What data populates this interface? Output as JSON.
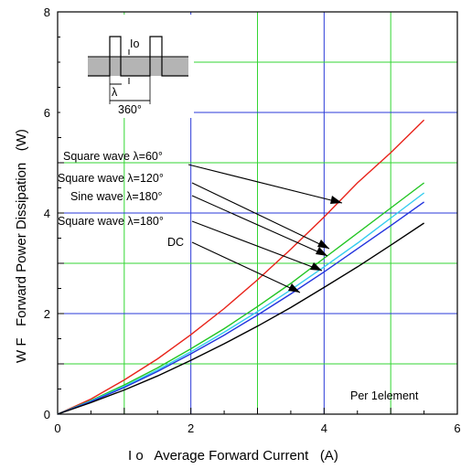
{
  "chart_data": {
    "type": "line",
    "xlabel": "I o   Average Forward Current   (A)",
    "ylabel": "W F   Forward Power Dissipation   (W)",
    "xlim": [
      0,
      6
    ],
    "ylim": [
      0,
      8
    ],
    "x_ticks": [
      "0",
      "2",
      "4",
      "6"
    ],
    "y_ticks": [
      "0",
      "2",
      "4",
      "6",
      "8"
    ],
    "grid": true,
    "series": [
      {
        "name": "Square wave λ=60°",
        "color": "#e8231a",
        "x": [
          0,
          0.5,
          1,
          1.5,
          2,
          2.5,
          3,
          3.5,
          4,
          4.5,
          5,
          5.5
        ],
        "y": [
          0,
          0.3,
          0.68,
          1.1,
          1.58,
          2.1,
          2.67,
          3.28,
          3.92,
          4.6,
          5.2,
          5.85
        ]
      },
      {
        "name": "Square wave λ=120°",
        "color": "#22c522",
        "x": [
          0,
          0.5,
          1,
          1.5,
          2,
          2.5,
          3,
          3.5,
          4,
          4.5,
          5,
          5.5
        ],
        "y": [
          0,
          0.27,
          0.58,
          0.92,
          1.3,
          1.7,
          2.14,
          2.6,
          3.1,
          3.6,
          4.1,
          4.6
        ]
      },
      {
        "name": "Sine wave λ=180°",
        "color": "#33ccee",
        "x": [
          0,
          0.5,
          1,
          1.5,
          2,
          2.5,
          3,
          3.5,
          4,
          4.5,
          5,
          5.5
        ],
        "y": [
          0,
          0.26,
          0.55,
          0.88,
          1.24,
          1.63,
          2.04,
          2.47,
          2.93,
          3.4,
          3.9,
          4.4
        ]
      },
      {
        "name": "Square wave λ=180°",
        "color": "#2233dd",
        "x": [
          0,
          0.5,
          1,
          1.5,
          2,
          2.5,
          3,
          3.5,
          4,
          4.5,
          5,
          5.5
        ],
        "y": [
          0,
          0.25,
          0.53,
          0.85,
          1.2,
          1.57,
          1.97,
          2.39,
          2.83,
          3.29,
          3.75,
          4.22
        ]
      },
      {
        "name": "DC",
        "color": "#000000",
        "x": [
          0,
          0.5,
          1,
          1.5,
          2,
          2.5,
          3,
          3.5,
          4,
          4.5,
          5,
          5.5
        ],
        "y": [
          0,
          0.23,
          0.48,
          0.76,
          1.07,
          1.4,
          1.75,
          2.12,
          2.52,
          2.93,
          3.36,
          3.8
        ]
      }
    ],
    "annotations": {
      "labels": [
        "Square wave λ=60°",
        "Square wave λ=120°",
        "Sine wave λ=180°",
        "Square wave λ=180°",
        "DC"
      ],
      "note": "Per 1element"
    },
    "inset": {
      "io_label": "Io",
      "lambda_label": "λ",
      "period_label": "360°"
    }
  }
}
